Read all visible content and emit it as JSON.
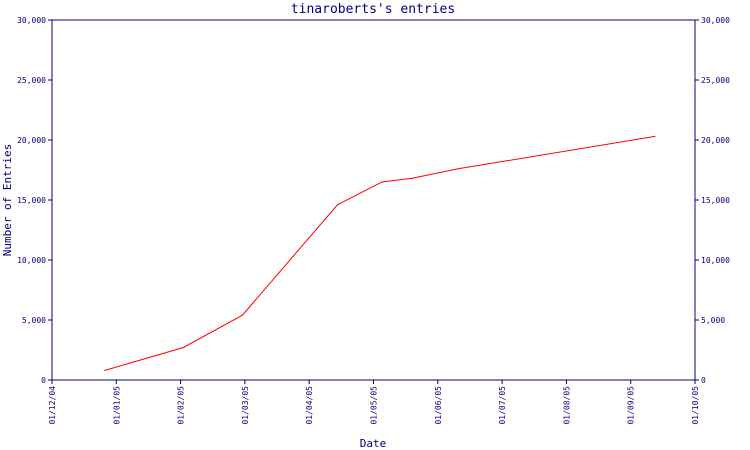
{
  "chart_data": {
    "type": "line",
    "title": "tinaroberts's entries",
    "xlabel": "Date",
    "ylabel": "Number of Entries",
    "ylim": [
      0,
      30000
    ],
    "yticks": [
      0,
      5000,
      10000,
      15000,
      20000,
      25000,
      30000
    ],
    "ytick_labels": [
      "0",
      "5,000",
      "10,000",
      "15,000",
      "20,000",
      "25,000",
      "30,000"
    ],
    "xlim": [
      "2004-12-01",
      "2005-10-01"
    ],
    "xtick_labels": [
      "01/12/04",
      "01/01/05",
      "01/02/05",
      "01/03/05",
      "01/04/05",
      "01/05/05",
      "01/06/05",
      "01/07/05",
      "01/08/05",
      "01/09/05",
      "01/10/05"
    ],
    "grid": false,
    "line_color": "#ff0000",
    "axis_color": "#000080",
    "series": [
      {
        "x": [
          "2004-12-26",
          "2005-02-01",
          "2005-03-01",
          "2005-04-15",
          "2005-05-06",
          "2005-05-20",
          "2005-06-11",
          "2005-09-12"
        ],
        "y": [
          800,
          2700,
          5400,
          14600,
          16500,
          16800,
          17600,
          20300
        ]
      }
    ]
  }
}
